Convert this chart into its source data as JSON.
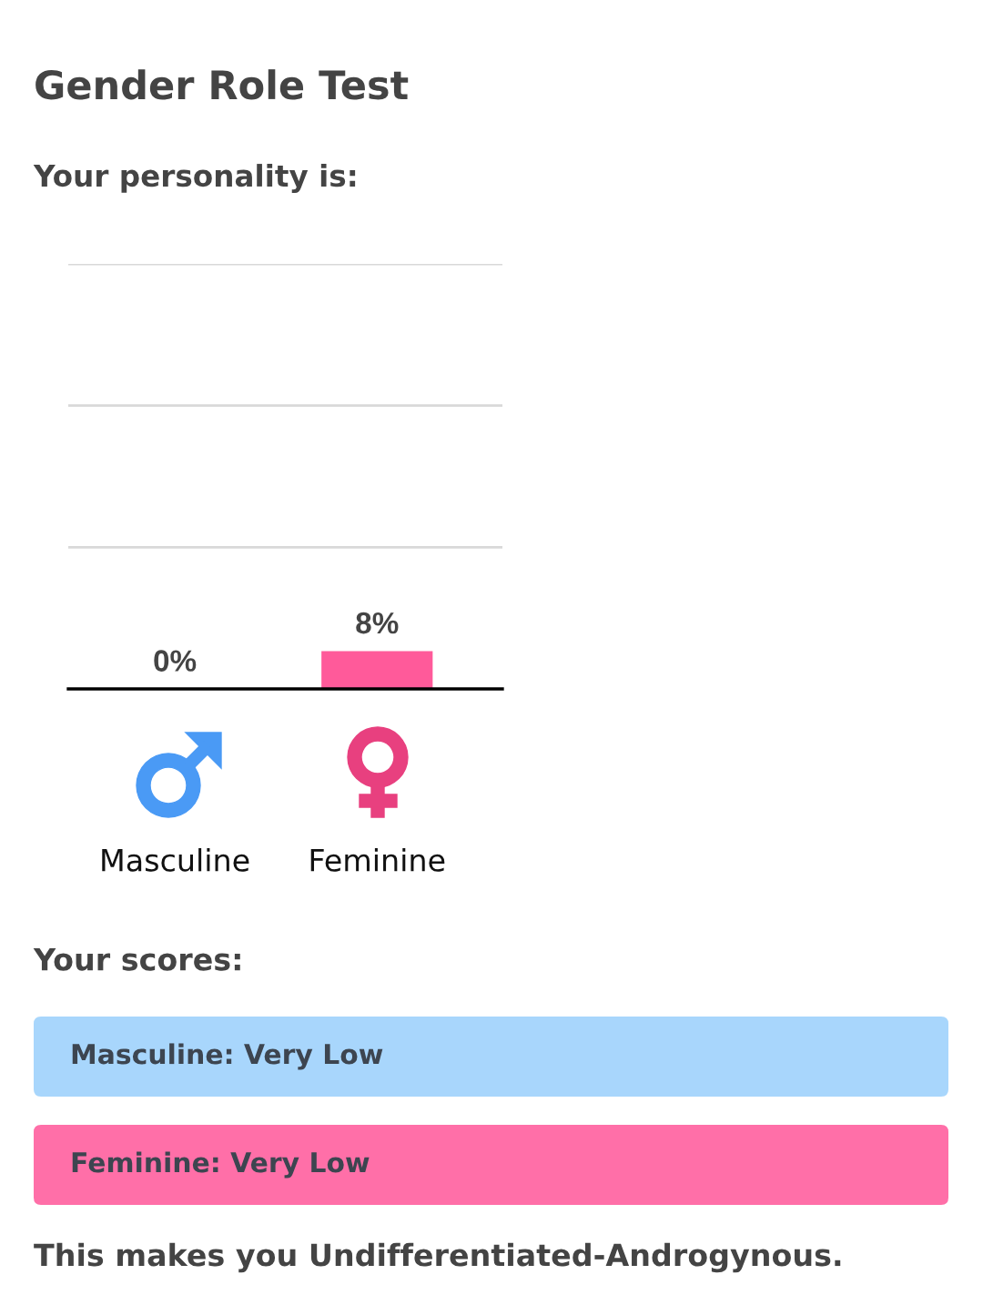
{
  "chart_data": {
    "type": "bar",
    "title": "Gender Role Test",
    "subtitle": "Your personality is:",
    "categories": [
      "Masculine",
      "Feminine"
    ],
    "values": [
      0,
      8
    ],
    "colors": [
      "#4a9af5",
      "#ff5a9a"
    ],
    "value_labels": [
      "0%",
      "8%"
    ],
    "ylim": [
      0,
      90
    ],
    "yticks": [
      {
        "value": 30,
        "label": null
      },
      {
        "value": 60,
        "label": null
      },
      {
        "value": 90,
        "label": null
      }
    ],
    "grid": "y",
    "tick_labels": "x",
    "annotations": [
      "Your scores:",
      "Masculine: Very Low",
      "Feminine: Very Low",
      "This makes you Undifferentiated-Androgynous."
    ]
  }
}
